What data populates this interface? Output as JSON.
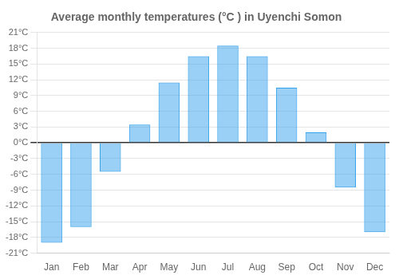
{
  "chart_data": {
    "type": "bar",
    "title": "Average monthly temperatures (°C ) in Uyenchi Somon",
    "categories": [
      "Jan",
      "Feb",
      "Mar",
      "Apr",
      "May",
      "Jun",
      "Jul",
      "Aug",
      "Sep",
      "Oct",
      "Nov",
      "Dec"
    ],
    "values": [
      -19,
      -16,
      -5.5,
      3.5,
      11.5,
      16.5,
      18.5,
      16.5,
      10.5,
      2,
      -8.5,
      -17
    ],
    "ylim": [
      -21,
      21
    ],
    "yticks": [
      {
        "value": -21,
        "label": "-21°C"
      },
      {
        "value": -18,
        "label": "-18°C"
      },
      {
        "value": -15,
        "label": "-15°C"
      },
      {
        "value": -12,
        "label": "-12°C"
      },
      {
        "value": -9,
        "label": "-9°C"
      },
      {
        "value": -6,
        "label": "-6°C"
      },
      {
        "value": -3,
        "label": "-3°C"
      },
      {
        "value": 0,
        "label": "0°C"
      },
      {
        "value": 3,
        "label": "3°C"
      },
      {
        "value": 6,
        "label": "6°C"
      },
      {
        "value": 9,
        "label": "9°C"
      },
      {
        "value": 12,
        "label": "12°C"
      },
      {
        "value": 15,
        "label": "15°C"
      },
      {
        "value": 18,
        "label": "18°C"
      },
      {
        "value": 21,
        "label": "21°C"
      }
    ],
    "grid": true
  }
}
